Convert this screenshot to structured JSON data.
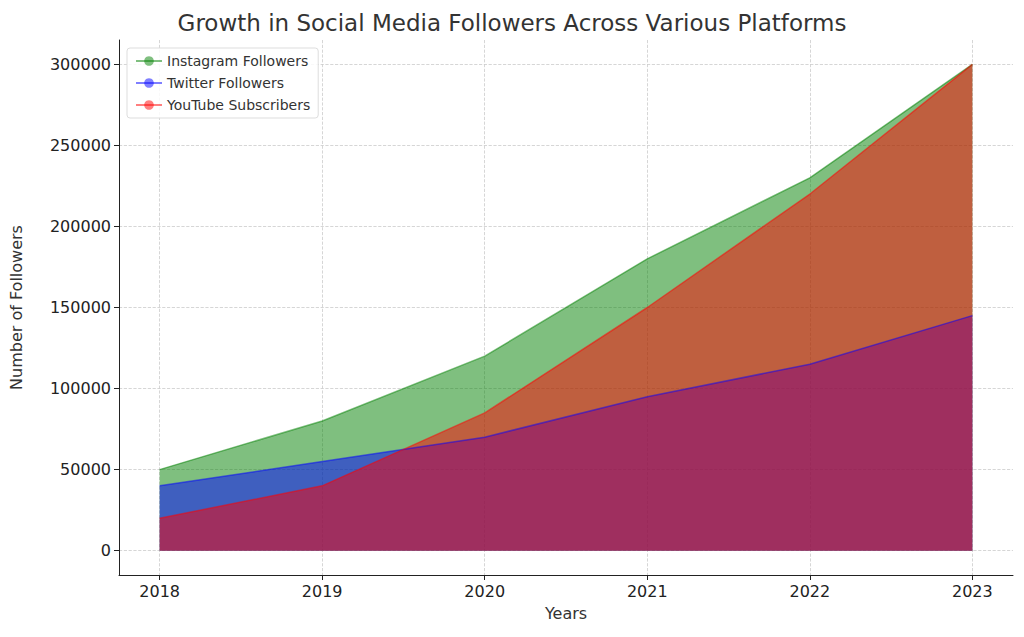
{
  "chart_data": {
    "type": "area",
    "title": "Growth in Social Media Followers Across Various Platforms",
    "x_label": "Years",
    "y_label": "Number of Followers",
    "x": [
      2018,
      2019,
      2020,
      2021,
      2022,
      2023
    ],
    "series": [
      {
        "name": "Instagram Followers",
        "color": "#008000",
        "values": [
          50000,
          80000,
          120000,
          180000,
          230000,
          300000
        ]
      },
      {
        "name": "Twitter Followers",
        "color": "#0000ff",
        "values": [
          40000,
          55000,
          70000,
          95000,
          115000,
          145000
        ]
      },
      {
        "name": "YouTube Subscribers",
        "color": "#ff0000",
        "values": [
          20000,
          40000,
          85000,
          150000,
          220000,
          300000
        ]
      }
    ],
    "xlim": [
      2017.75,
      2023.25
    ],
    "xticks": [
      2018,
      2019,
      2020,
      2021,
      2022,
      2023
    ],
    "ylim": [
      -15000,
      315000
    ],
    "yticks": [
      0,
      50000,
      100000,
      150000,
      200000,
      250000,
      300000
    ],
    "grid": true,
    "stacked": false,
    "legend": "upper left"
  }
}
